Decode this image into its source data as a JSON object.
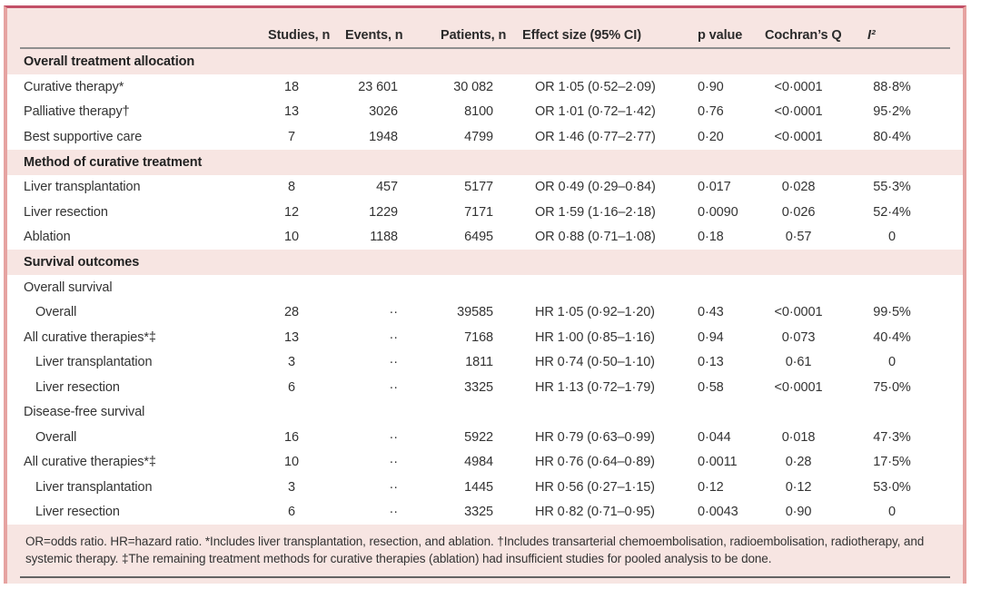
{
  "table": {
    "columns": [
      {
        "label": ""
      },
      {
        "label": "Studies, n"
      },
      {
        "label": "Events, n"
      },
      {
        "label": "Patients, n"
      },
      {
        "label": "Effect size (95% CI)"
      },
      {
        "label": "p value"
      },
      {
        "label": "Cochran’s Q"
      },
      {
        "label": "I²"
      }
    ],
    "rows": [
      {
        "type": "section",
        "label": "Overall treatment allocation"
      },
      {
        "type": "data",
        "indent": 0,
        "label": "Curative therapy*",
        "studies": "18",
        "events": "23 601",
        "patients": "30 082",
        "effect": "OR 1·05 (0·52–2·09)",
        "p": "0·90",
        "q": "<0·0001",
        "i2": "88·8%"
      },
      {
        "type": "data",
        "indent": 0,
        "label": "Palliative therapy†",
        "studies": "13",
        "events": "3026",
        "patients": "8100",
        "effect": "OR 1·01 (0·72–1·42)",
        "p": "0·76",
        "q": "<0·0001",
        "i2": "95·2%"
      },
      {
        "type": "data",
        "indent": 0,
        "label": "Best supportive care",
        "studies": "7",
        "events": "1948",
        "patients": "4799",
        "effect": "OR 1·46 (0·77–2·77)",
        "p": "0·20",
        "q": "<0·0001",
        "i2": "80·4%"
      },
      {
        "type": "section",
        "label": "Method of curative treatment"
      },
      {
        "type": "data",
        "indent": 0,
        "label": "Liver transplantation",
        "studies": "8",
        "events": "457",
        "patients": "5177",
        "effect": "OR 0·49 (0·29–0·84)",
        "p": "0·017",
        "q": "0·028",
        "i2": "55·3%"
      },
      {
        "type": "data",
        "indent": 0,
        "label": "Liver resection",
        "studies": "12",
        "events": "1229",
        "patients": "7171",
        "effect": "OR 1·59 (1·16–2·18)",
        "p": "0·0090",
        "q": "0·026",
        "i2": "52·4%"
      },
      {
        "type": "data",
        "indent": 0,
        "label": "Ablation",
        "studies": "10",
        "events": "1188",
        "patients": "6495",
        "effect": "OR 0·88 (0·71–1·08)",
        "p": "0·18",
        "q": "0·57",
        "i2": "0"
      },
      {
        "type": "section",
        "label": "Survival outcomes"
      },
      {
        "type": "sub",
        "label": "Overall survival"
      },
      {
        "type": "data",
        "indent": 1,
        "label": "Overall",
        "studies": "28",
        "events": "··",
        "patients": "39585",
        "effect": "HR 1·05 (0·92–1·20)",
        "p": "0·43",
        "q": "<0·0001",
        "i2": "99·5%"
      },
      {
        "type": "data",
        "indent": 0,
        "label": "All curative therapies*‡",
        "studies": "13",
        "events": "··",
        "patients": "7168",
        "effect": "HR 1·00 (0·85–1·16)",
        "p": "0·94",
        "q": "0·073",
        "i2": "40·4%"
      },
      {
        "type": "data",
        "indent": 1,
        "label": "Liver transplantation",
        "studies": "3",
        "events": "··",
        "patients": "1811",
        "effect": "HR 0·74 (0·50–1·10)",
        "p": "0·13",
        "q": "0·61",
        "i2": "0"
      },
      {
        "type": "data",
        "indent": 1,
        "label": "Liver resection",
        "studies": "6",
        "events": "··",
        "patients": "3325",
        "effect": "HR 1·13 (0·72–1·79)",
        "p": "0·58",
        "q": "<0·0001",
        "i2": "75·0%"
      },
      {
        "type": "sub",
        "label": "Disease-free survival"
      },
      {
        "type": "data",
        "indent": 1,
        "label": "Overall",
        "studies": "16",
        "events": "··",
        "patients": "5922",
        "effect": "HR 0·79 (0·63–0·99)",
        "p": "0·044",
        "q": "0·018",
        "i2": "47·3%"
      },
      {
        "type": "data",
        "indent": 0,
        "label": "All curative therapies*‡",
        "studies": "10",
        "events": "··",
        "patients": "4984",
        "effect": "HR 0·76 (0·64–0·89)",
        "p": "0·0011",
        "q": "0·28",
        "i2": "17·5%"
      },
      {
        "type": "data",
        "indent": 1,
        "label": "Liver transplantation",
        "studies": "3",
        "events": "··",
        "patients": "1445",
        "effect": "HR 0·56 (0·27–1·15)",
        "p": "0·12",
        "q": "0·12",
        "i2": "53·0%"
      },
      {
        "type": "data",
        "indent": 1,
        "label": "Liver resection",
        "studies": "6",
        "events": "··",
        "patients": "3325",
        "effect": "HR 0·82 (0·71–0·95)",
        "p": "0·0043",
        "q": "0·90",
        "i2": "0"
      }
    ],
    "footnote": "OR=odds ratio. HR=hazard ratio. *Includes liver transplantation, resection, and ablation. †Includes transarterial chemoembolisation, radioembolisation, radiotherapy, and systemic therapy. ‡The remaining treatment methods for curative therapies (ablation) had insufficient studies for pooled analysis to be done.",
    "colors": {
      "band_pink": "#f7e5e2",
      "row_white": "#ffffff",
      "top_border": "#c25067",
      "side_border": "#e6a3a1",
      "header_rule": "#8f8f8f",
      "bottom_rule": "#636363",
      "text": "#333333"
    }
  }
}
